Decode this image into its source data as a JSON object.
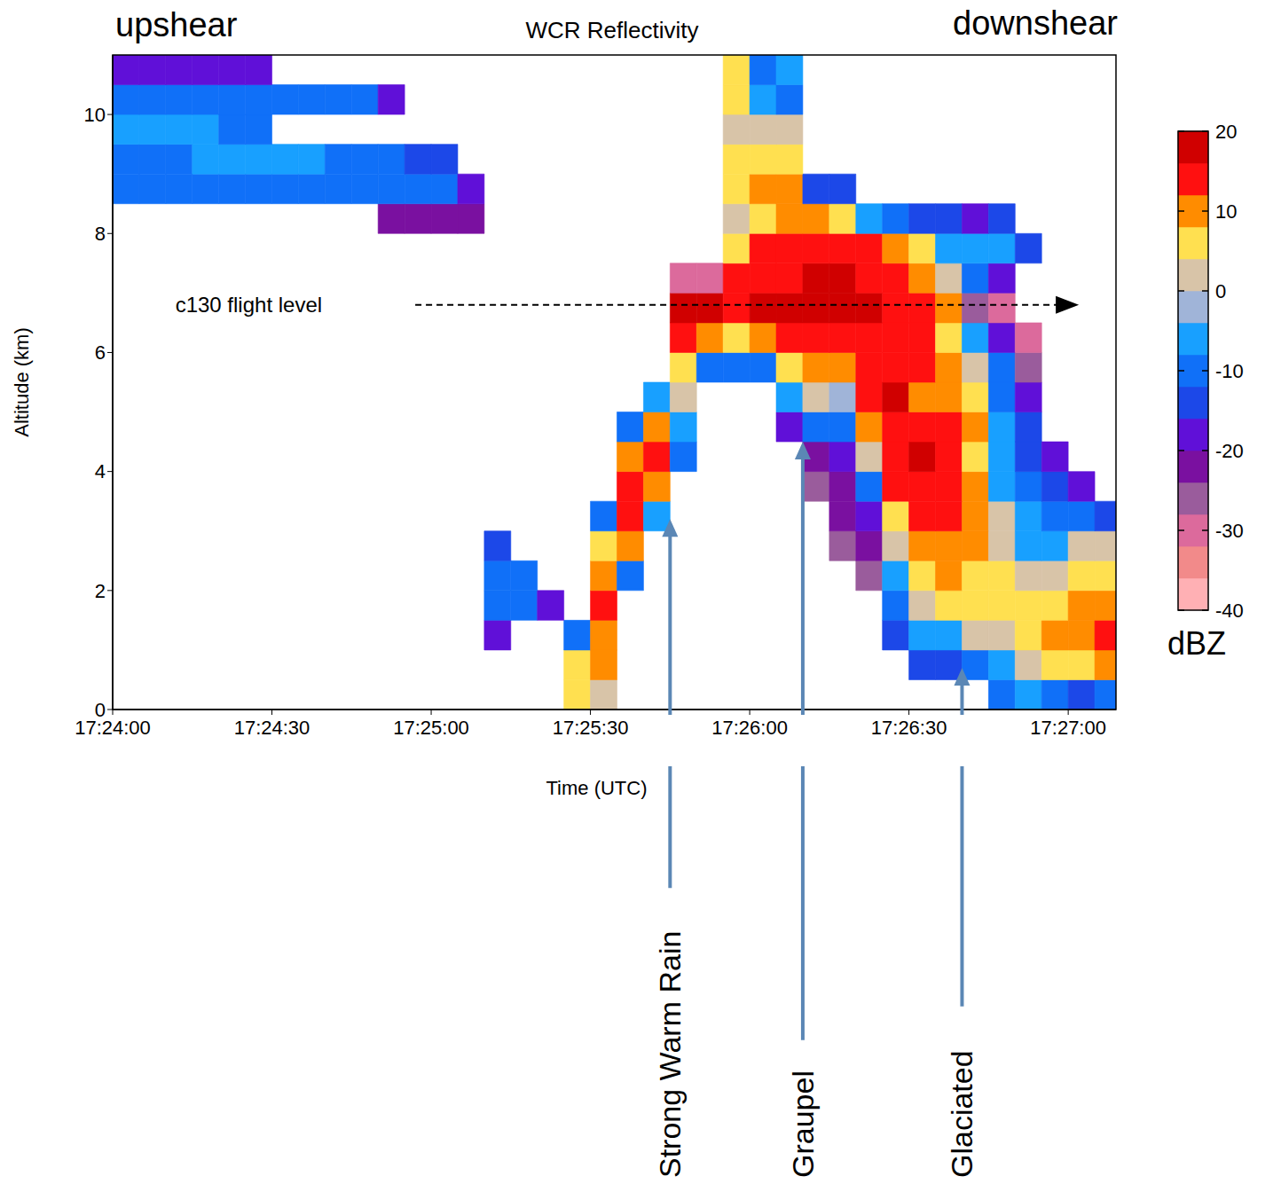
{
  "chart_data": {
    "type": "heatmap",
    "title": "WCR Reflectivity",
    "corner_labels": {
      "left": "upshear",
      "right": "downshear"
    },
    "x_label": "Time (UTC)",
    "y_label": "Altitude (km)",
    "xlim": [
      62640,
      62829
    ],
    "xticks": [
      {
        "value": 62640,
        "label": "17:24:00"
      },
      {
        "value": 62670,
        "label": "17:24:30"
      },
      {
        "value": 62700,
        "label": "17:25:00"
      },
      {
        "value": 62730,
        "label": "17:25:30"
      },
      {
        "value": 62760,
        "label": "17:26:00"
      },
      {
        "value": 62790,
        "label": "17:26:30"
      },
      {
        "value": 62820,
        "label": "17:27:00"
      }
    ],
    "ylim": [
      0,
      11
    ],
    "yticks": [
      0,
      2,
      4,
      6,
      8,
      10
    ],
    "cells": {
      "x_edges": [
        62640,
        62645,
        62650,
        62655,
        62660,
        62665,
        62670,
        62675,
        62680,
        62685,
        62690,
        62695,
        62700,
        62705,
        62710,
        62715,
        62720,
        62725,
        62730,
        62735,
        62740,
        62745,
        62750,
        62755,
        62760,
        62765,
        62770,
        62775,
        62780,
        62785,
        62790,
        62795,
        62800,
        62805,
        62810,
        62815,
        62820,
        62825,
        62830
      ],
      "y_edges": [
        0,
        0.5,
        1,
        1.5,
        2,
        2.5,
        3,
        3.5,
        4,
        4.5,
        5,
        5.5,
        6,
        6.5,
        7,
        7.5,
        8,
        8.5,
        9,
        9.5,
        10,
        10.5,
        11
      ],
      "z": [
        [
          null,
          null,
          null,
          null,
          null,
          null,
          null,
          null,
          null,
          null,
          null,
          null,
          null,
          null,
          null,
          null,
          null,
          5,
          0,
          null,
          null,
          null,
          null,
          null,
          null,
          null,
          null,
          null,
          null,
          null,
          null,
          null,
          null,
          -10,
          -5,
          -10,
          -15,
          -10
        ],
        [
          null,
          null,
          null,
          null,
          null,
          null,
          null,
          null,
          null,
          null,
          null,
          null,
          null,
          null,
          null,
          null,
          null,
          5,
          10,
          null,
          null,
          null,
          null,
          null,
          null,
          null,
          null,
          null,
          null,
          null,
          -15,
          -15,
          -10,
          -5,
          0,
          5,
          5,
          10
        ],
        [
          null,
          null,
          null,
          null,
          null,
          null,
          null,
          null,
          null,
          null,
          null,
          null,
          null,
          null,
          -20,
          null,
          null,
          -10,
          10,
          null,
          null,
          null,
          null,
          null,
          null,
          null,
          null,
          null,
          null,
          -15,
          -5,
          -5,
          0,
          0,
          5,
          8,
          10,
          15
        ],
        [
          null,
          null,
          null,
          null,
          null,
          null,
          null,
          null,
          null,
          null,
          null,
          null,
          null,
          null,
          -12,
          -12,
          -18,
          null,
          12,
          null,
          null,
          null,
          null,
          null,
          null,
          null,
          null,
          null,
          null,
          -10,
          0,
          5,
          5,
          5,
          5,
          5,
          10,
          10
        ],
        [
          null,
          null,
          null,
          null,
          null,
          null,
          null,
          null,
          null,
          null,
          null,
          null,
          null,
          null,
          -10,
          -10,
          null,
          null,
          10,
          -10,
          null,
          null,
          null,
          null,
          null,
          null,
          null,
          null,
          -25,
          -5,
          5,
          10,
          5,
          5,
          0,
          0,
          5,
          5
        ],
        [
          null,
          null,
          null,
          null,
          null,
          null,
          null,
          null,
          null,
          null,
          null,
          null,
          null,
          null,
          -15,
          null,
          null,
          null,
          5,
          10,
          null,
          null,
          null,
          null,
          null,
          null,
          null,
          -25,
          -22,
          0,
          10,
          10,
          10,
          0,
          -5,
          -5,
          0,
          0
        ],
        [
          null,
          null,
          null,
          null,
          null,
          null,
          null,
          null,
          null,
          null,
          null,
          null,
          null,
          null,
          null,
          null,
          null,
          null,
          -10,
          15,
          -5,
          null,
          null,
          null,
          null,
          null,
          null,
          -22,
          -20,
          5,
          15,
          12,
          10,
          0,
          -5,
          -10,
          -10,
          -15
        ],
        [
          null,
          null,
          null,
          null,
          null,
          null,
          null,
          null,
          null,
          null,
          null,
          null,
          null,
          null,
          null,
          null,
          null,
          null,
          null,
          15,
          10,
          null,
          null,
          null,
          null,
          null,
          -25,
          -22,
          -10,
          12,
          15,
          15,
          8,
          -5,
          -10,
          -15,
          -20,
          null
        ],
        [
          null,
          null,
          null,
          null,
          null,
          null,
          null,
          null,
          null,
          null,
          null,
          null,
          null,
          null,
          null,
          null,
          null,
          null,
          null,
          8,
          15,
          -10,
          null,
          null,
          null,
          null,
          -22,
          -20,
          0,
          15,
          18,
          15,
          5,
          -8,
          -15,
          -18,
          null,
          null
        ],
        [
          null,
          null,
          null,
          null,
          null,
          null,
          null,
          null,
          null,
          null,
          null,
          null,
          null,
          null,
          null,
          null,
          null,
          null,
          null,
          -10,
          10,
          -5,
          null,
          null,
          null,
          -20,
          -10,
          -10,
          10,
          15,
          15,
          12,
          10,
          -5,
          -15,
          null,
          null,
          null
        ],
        [
          null,
          null,
          null,
          null,
          null,
          null,
          null,
          null,
          null,
          null,
          null,
          null,
          null,
          null,
          null,
          null,
          null,
          null,
          null,
          null,
          -5,
          0,
          null,
          null,
          null,
          -5,
          0,
          -2,
          15,
          18,
          10,
          10,
          5,
          -10,
          -18,
          null,
          null,
          null
        ],
        [
          null,
          null,
          null,
          null,
          null,
          null,
          null,
          null,
          null,
          null,
          null,
          null,
          null,
          null,
          null,
          null,
          null,
          null,
          null,
          null,
          null,
          5,
          -10,
          -10,
          -10,
          5,
          8,
          10,
          15,
          15,
          12,
          8,
          0,
          -10,
          -25,
          null,
          null,
          null
        ],
        [
          null,
          null,
          null,
          null,
          null,
          null,
          null,
          null,
          null,
          null,
          null,
          null,
          null,
          null,
          null,
          null,
          null,
          null,
          null,
          null,
          null,
          15,
          10,
          5,
          8,
          12,
          15,
          15,
          15,
          12,
          15,
          5,
          -5,
          -20,
          -30,
          null,
          null,
          null
        ],
        [
          null,
          null,
          null,
          null,
          null,
          null,
          null,
          null,
          null,
          null,
          null,
          null,
          null,
          null,
          null,
          null,
          null,
          null,
          null,
          null,
          null,
          18,
          18,
          15,
          20,
          18,
          20,
          20,
          20,
          15,
          12,
          10,
          -25,
          -30,
          null,
          null,
          null,
          null
        ],
        [
          null,
          null,
          null,
          null,
          null,
          null,
          null,
          null,
          null,
          null,
          null,
          null,
          null,
          null,
          null,
          null,
          null,
          null,
          null,
          null,
          null,
          -30,
          -30,
          12,
          15,
          15,
          18,
          18,
          15,
          12,
          10,
          0,
          -10,
          -20,
          null,
          null,
          null,
          null
        ],
        [
          null,
          null,
          null,
          null,
          null,
          null,
          null,
          null,
          null,
          null,
          null,
          null,
          null,
          null,
          null,
          null,
          null,
          null,
          null,
          null,
          null,
          null,
          null,
          5,
          12,
          15,
          15,
          15,
          12,
          8,
          5,
          -5,
          -5,
          -5,
          -15,
          null,
          null,
          null
        ],
        [
          null,
          null,
          null,
          null,
          null,
          null,
          null,
          null,
          null,
          null,
          -22,
          -22,
          -22,
          -22,
          null,
          null,
          null,
          null,
          null,
          null,
          null,
          null,
          null,
          0,
          5,
          10,
          10,
          5,
          -5,
          -10,
          -15,
          -15,
          -20,
          -15,
          null,
          null,
          null,
          null
        ],
        [
          -12,
          -12,
          -12,
          -12,
          -12,
          -12,
          -12,
          -12,
          -12,
          -12,
          -12,
          -12,
          -12,
          -20,
          null,
          null,
          null,
          null,
          null,
          null,
          null,
          null,
          null,
          5,
          8,
          8,
          -15,
          -15,
          null,
          null,
          null,
          null,
          null,
          null,
          null,
          null,
          null,
          null
        ],
        [
          -10,
          -10,
          -10,
          -7,
          -7,
          -7,
          -7,
          -7,
          -10,
          -10,
          -10,
          -15,
          -15,
          null,
          null,
          null,
          null,
          null,
          null,
          null,
          null,
          null,
          null,
          5,
          5,
          5,
          null,
          null,
          null,
          null,
          null,
          null,
          null,
          null,
          null,
          null,
          null,
          null
        ],
        [
          -8,
          -8,
          -8,
          -8,
          -12,
          -12,
          null,
          null,
          null,
          null,
          null,
          null,
          null,
          null,
          null,
          null,
          null,
          null,
          null,
          null,
          null,
          null,
          null,
          0,
          0,
          0,
          null,
          null,
          null,
          null,
          null,
          null,
          null,
          null,
          null,
          null,
          null,
          null
        ],
        [
          -12,
          -12,
          -12,
          -12,
          -12,
          -12,
          -12,
          -12,
          -12,
          -12,
          -20,
          null,
          null,
          null,
          null,
          null,
          null,
          null,
          null,
          null,
          null,
          null,
          null,
          5,
          -5,
          -10,
          null,
          null,
          null,
          null,
          null,
          null,
          null,
          null,
          null,
          null,
          null,
          null
        ],
        [
          -20,
          -20,
          -20,
          -20,
          -20,
          -20,
          null,
          null,
          null,
          null,
          null,
          null,
          null,
          null,
          null,
          null,
          null,
          null,
          null,
          null,
          null,
          null,
          null,
          5,
          -10,
          -8,
          null,
          null,
          null,
          null,
          null,
          null,
          null,
          null,
          null,
          null,
          null,
          null
        ]
      ]
    },
    "colorbar": {
      "label": "dBZ",
      "range": [
        -40,
        20
      ],
      "ticks": [
        -40,
        -30,
        -20,
        -10,
        0,
        10,
        20
      ],
      "bounds": [
        -40,
        -36,
        -32,
        -28,
        -24,
        -20,
        -16,
        -12,
        -8,
        -4,
        0,
        4,
        8,
        12,
        16,
        20
      ],
      "colors": [
        "#ffb0b4",
        "#f28a8a",
        "#dc6a9c",
        "#9a5c9c",
        "#7a10a0",
        "#6010d8",
        "#1c48e8",
        "#1070f8",
        "#18a0ff",
        "#a0b4d8",
        "#d8c4a8",
        "#ffe050",
        "#ff8c00",
        "#ff1010",
        "#d00000"
      ]
    },
    "flight_level": {
      "label": "c130 flight level",
      "altitude": 6.8,
      "start": 62697,
      "end": 62820
    },
    "annotations": [
      {
        "text": "Strong Warm Rain",
        "x": 62745,
        "y": 3.2
      },
      {
        "text": "Graupel",
        "x": 62770,
        "y": 4.5
      },
      {
        "text": "Glaciated",
        "x": 62800,
        "y": 0.7
      }
    ]
  }
}
